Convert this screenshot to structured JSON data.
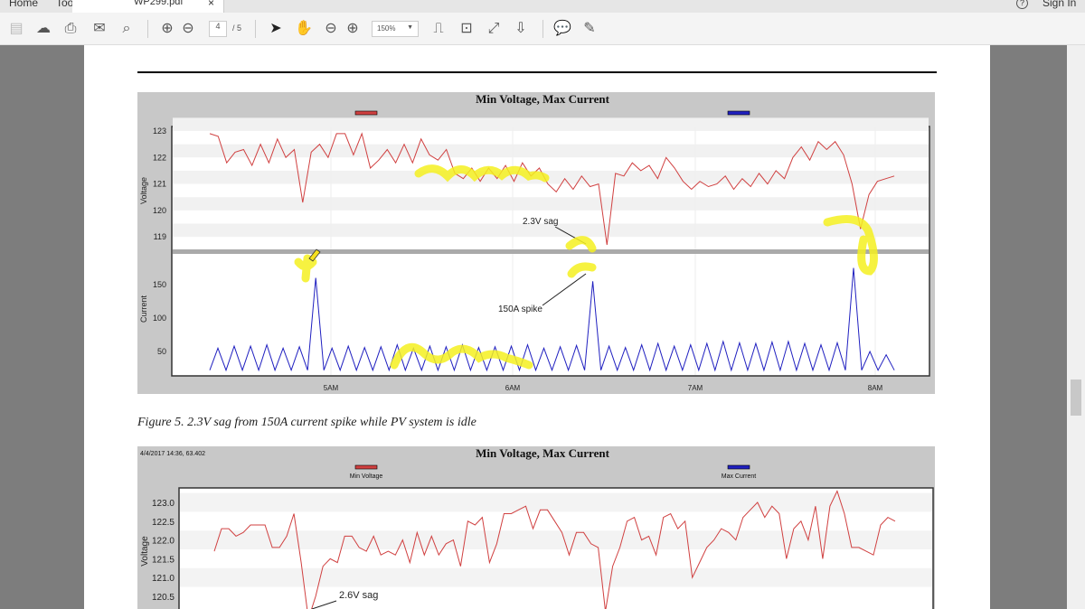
{
  "tabs": {
    "home": "Home",
    "tools": "Tools",
    "document": "WP299.pdf",
    "close": "×",
    "help": "?",
    "sign_in": "Sign In"
  },
  "toolbar": {
    "page_current": "4",
    "page_total": "/ 5",
    "zoom": "150%",
    "icons": [
      "save-icon",
      "upload-icon",
      "print-icon",
      "mail-icon",
      "search-icon",
      "page-up-icon",
      "page-down-icon",
      "select-arrow-icon",
      "hand-icon",
      "zoom-out-icon",
      "zoom-in-icon",
      "fit-page-icon",
      "rotate-icon",
      "fullscreen-icon",
      "scroll-mode-icon",
      "comment-icon",
      "pen-icon"
    ]
  },
  "caption": "Figure 5. 2.3V sag from 150A current spike while PV system is idle",
  "colors": {
    "voltage": "#d04040",
    "current": "#2020c0",
    "highlight": "#f5f020",
    "panel": "#c8c8c8"
  },
  "chart_data": [
    {
      "type": "line",
      "title": "Min Voltage, Max Current",
      "legend": [
        "Min Voltage",
        "Max Current"
      ],
      "legend_placement": "top",
      "x_ticks": [
        "5AM",
        "6AM",
        "7AM",
        "8AM"
      ],
      "x_range": [
        "4:20",
        "8:06"
      ],
      "panels": [
        {
          "ylabel": "Voltage",
          "y_ticks": [
            "123",
            "122",
            "121",
            "120",
            "119"
          ],
          "ylim": [
            118.6,
            123.2
          ],
          "series": {
            "name": "Min Voltage",
            "values": [
              122.9,
              122.8,
              121.8,
              122.2,
              122.3,
              121.7,
              122.5,
              121.8,
              122.7,
              122.0,
              122.3,
              120.3,
              122.2,
              122.5,
              122.0,
              122.9,
              122.9,
              122.1,
              122.9,
              121.6,
              121.9,
              122.3,
              121.8,
              122.5,
              121.8,
              122.7,
              122.1,
              121.9,
              122.3,
              121.4,
              121.2,
              121.6,
              121.1,
              121.6,
              121.2,
              121.7,
              121.1,
              121.8,
              121.3,
              121.6,
              121.0,
              120.7,
              121.2,
              120.8,
              121.3,
              120.9,
              121.0,
              118.7,
              121.4,
              121.3,
              121.8,
              121.5,
              121.7,
              121.2,
              122.0,
              121.6,
              121.1,
              120.8,
              121.1,
              120.9,
              121.0,
              121.3,
              120.8,
              121.2,
              120.9,
              121.4,
              121.0,
              121.5,
              121.2,
              122.0,
              122.4,
              121.9,
              122.6,
              122.3,
              122.6,
              122.1,
              121.0,
              119.3,
              120.6,
              121.1,
              121.2,
              121.3
            ]
          }
        },
        {
          "ylabel": "Current",
          "y_ticks": [
            "150",
            "100",
            "50"
          ],
          "ylim": [
            15,
            197
          ],
          "series": {
            "name": "Max Current",
            "values": [
              22,
              55,
              22,
              58,
              22,
              58,
              22,
              60,
              22,
              55,
              22,
              57,
              22,
              160,
              22,
              55,
              22,
              58,
              22,
              56,
              22,
              57,
              22,
              60,
              22,
              55,
              22,
              58,
              22,
              57,
              22,
              60,
              22,
              56,
              22,
              57,
              22,
              58,
              22,
              60,
              22,
              55,
              22,
              57,
              22,
              59,
              22,
              155,
              22,
              58,
              22,
              56,
              22,
              60,
              22,
              62,
              22,
              58,
              22,
              60,
              22,
              62,
              22,
              65,
              22,
              63,
              22,
              62,
              22,
              64,
              22,
              65,
              22,
              62,
              22,
              60,
              22,
              63,
              22,
              175,
              22,
              50,
              22,
              45,
              22
            ]
          }
        }
      ],
      "annotations": [
        "2.3V sag",
        "150A spike"
      ]
    },
    {
      "type": "line",
      "title": "Min Voltage, Max Current",
      "timestamp": "4/4/2017 14:36, 63.402",
      "legend": [
        "Min Voltage",
        "Max Current"
      ],
      "legend_placement": "top",
      "panels": [
        {
          "ylabel": "Voltage",
          "y_ticks": [
            "123.0",
            "122.5",
            "122.0",
            "121.5",
            "121.0",
            "120.5"
          ],
          "ylim": [
            120.0,
            123.4
          ],
          "series": {
            "name": "Min Voltage",
            "values": [
              121.7,
              122.3,
              122.3,
              122.1,
              122.2,
              122.4,
              122.4,
              122.4,
              121.8,
              121.8,
              122.1,
              122.7,
              121.4,
              119.9,
              120.5,
              121.3,
              121.5,
              121.4,
              122.1,
              122.1,
              121.8,
              121.7,
              122.1,
              121.6,
              121.7,
              121.6,
              122.0,
              121.4,
              122.2,
              121.6,
              122.1,
              121.6,
              121.9,
              122.0,
              121.3,
              122.5,
              122.4,
              122.6,
              121.4,
              121.9,
              122.7,
              122.7,
              122.8,
              122.9,
              122.3,
              122.8,
              122.8,
              122.5,
              122.2,
              121.6,
              122.2,
              122.2,
              121.9,
              121.8,
              120.1,
              121.3,
              121.8,
              122.5,
              122.6,
              122.0,
              122.1,
              121.6,
              122.6,
              122.7,
              122.3,
              122.5,
              121.0,
              121.4,
              121.8,
              122.0,
              122.3,
              122.2,
              122.0,
              122.6,
              122.8,
              123.0,
              122.6,
              122.9,
              122.7,
              121.5,
              122.3,
              122.5,
              122.0,
              122.9,
              121.5,
              122.9,
              123.3,
              122.7,
              121.8,
              121.8,
              121.7,
              121.6,
              122.4,
              122.6,
              122.5
            ]
          }
        }
      ],
      "annotations": [
        "2.6V sag"
      ]
    }
  ]
}
